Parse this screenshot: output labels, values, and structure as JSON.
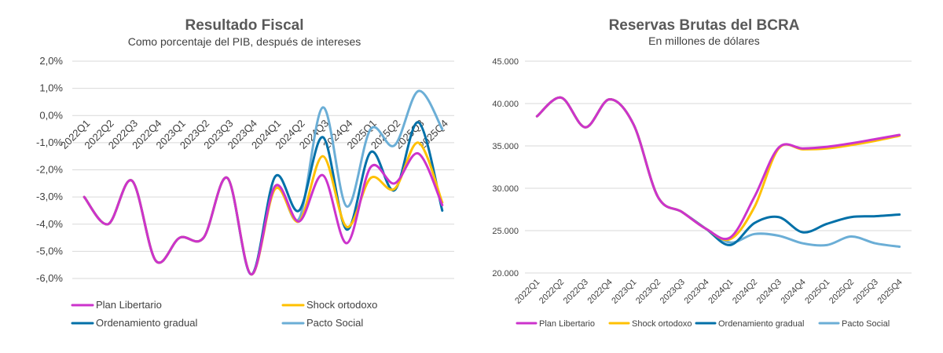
{
  "chart_data": [
    {
      "type": "line",
      "title": "Resultado Fiscal",
      "subtitle": "Como porcentaje del PIB, después de intereses",
      "categories": [
        "2022Q1",
        "2022Q2",
        "2022Q3",
        "2022Q4",
        "2023Q1",
        "2023Q2",
        "2023Q3",
        "2023Q4",
        "2024Q1",
        "2024Q2",
        "2024Q3",
        "2024Q4",
        "2025Q1",
        "2025Q2",
        "2025Q3",
        "2025Q4"
      ],
      "ylim": [
        -6,
        2
      ],
      "yticks": [
        2,
        1,
        0,
        -1,
        -2,
        -3,
        -4,
        -5,
        -6
      ],
      "ytick_labels": [
        "2,0%",
        "1,0%",
        "0,0%",
        "-1,0%",
        "-2,0%",
        "-3,0%",
        "-4,0%",
        "-5,0%",
        "-6,0%"
      ],
      "legend_position": "bottom",
      "series": [
        {
          "name": "Plan Libertario",
          "color": "#cc33cc",
          "values": [
            -3.0,
            -4.0,
            -2.4,
            -5.35,
            -4.5,
            -4.5,
            -2.3,
            -5.85,
            -2.6,
            -3.9,
            -2.2,
            -4.7,
            -1.9,
            -2.5,
            -1.4,
            -3.3
          ]
        },
        {
          "name": "Shock ortodoxo",
          "color": "#ffc000",
          "values": [
            -3.0,
            -4.0,
            -2.4,
            -5.35,
            -4.5,
            -4.5,
            -2.3,
            -5.85,
            -2.7,
            -3.9,
            -1.5,
            -4.1,
            -2.3,
            -2.7,
            -1.0,
            -3.2
          ]
        },
        {
          "name": "Ordenamiento gradual",
          "color": "#0070a8",
          "values": [
            -3.0,
            -4.0,
            -2.4,
            -5.35,
            -4.5,
            -4.5,
            -2.3,
            -5.85,
            -2.25,
            -3.5,
            -0.8,
            -4.2,
            -1.35,
            -2.75,
            -0.25,
            -3.5
          ]
        },
        {
          "name": "Pacto Social",
          "color": "#6baed6",
          "values": [
            -3.0,
            -4.0,
            -2.4,
            -5.35,
            -4.5,
            -4.5,
            -2.3,
            -5.85,
            -2.6,
            -3.8,
            0.3,
            -3.35,
            -0.5,
            -1.1,
            0.9,
            -0.5
          ]
        }
      ]
    },
    {
      "type": "line",
      "title": "Reservas Brutas del BCRA",
      "subtitle": "En millones de dólares",
      "categories": [
        "2022Q1",
        "2022Q2",
        "2022Q3",
        "2022Q4",
        "2023Q1",
        "2023Q2",
        "2023Q3",
        "2023Q4",
        "2024Q1",
        "2024Q2",
        "2024Q3",
        "2024Q4",
        "2025Q1",
        "2025Q2",
        "2025Q3",
        "2025Q4"
      ],
      "ylim": [
        20000,
        45000
      ],
      "yticks": [
        45000,
        40000,
        35000,
        30000,
        25000,
        20000
      ],
      "ytick_labels": [
        "45.000",
        "40.000",
        "35.000",
        "30.000",
        "25.000",
        "20.000"
      ],
      "legend_position": "bottom",
      "series": [
        {
          "name": "Plan Libertario",
          "color": "#cc33cc",
          "values": [
            38500,
            40700,
            37200,
            40500,
            37500,
            29000,
            27200,
            25200,
            24200,
            29000,
            34800,
            34700,
            34900,
            35300,
            35800,
            36300
          ]
        },
        {
          "name": "Shock ortodoxo",
          "color": "#ffc000",
          "values": [
            38500,
            40700,
            37200,
            40500,
            37500,
            29000,
            27200,
            25200,
            24000,
            27800,
            34700,
            34600,
            34700,
            35100,
            35600,
            36200
          ]
        },
        {
          "name": "Ordenamiento gradual",
          "color": "#0070a8",
          "values": [
            38500,
            40700,
            37200,
            40500,
            37500,
            29000,
            27200,
            25200,
            23300,
            25900,
            26600,
            24800,
            25800,
            26600,
            26700,
            26900
          ]
        },
        {
          "name": "Pacto Social",
          "color": "#6baed6",
          "values": [
            38500,
            40700,
            37200,
            40500,
            37500,
            29000,
            27200,
            25200,
            23600,
            24600,
            24400,
            23500,
            23300,
            24300,
            23500,
            23100
          ]
        }
      ]
    }
  ]
}
